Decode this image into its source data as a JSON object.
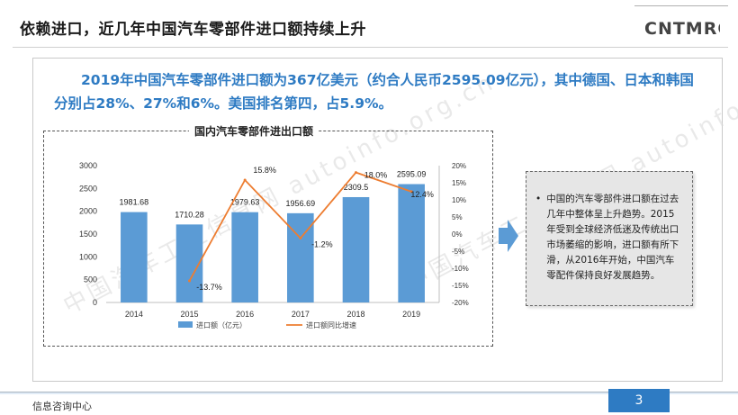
{
  "header": {
    "title": "依赖进口，近几年中国汽车零部件进口额持续上升",
    "logo_text": "CNTMRC"
  },
  "summary": "2019年中国汽车零部件进口额为367亿美元（约合人民币2595.09亿元），其中德国、日本和韩国分别占28%、27%和6%。美国排名第四，占5.9%。",
  "note": {
    "bullet": "•",
    "text": "中国的汽车零部件进口额在过去几年中整体呈上升趋势。2015年受到全球经济低迷及传统出口市场萎缩的影响，进口额有所下滑，从2016年开始，中国汽车零配件保持良好发展趋势。"
  },
  "footer": {
    "label": "信息咨询中心",
    "page_number": "3"
  },
  "watermark": {
    "text": "中国汽车工业信息网 autoinfo.org.cn"
  },
  "colors": {
    "accent": "#2e7bc3",
    "bar": "#5b9bd5",
    "line": "#ed7d31"
  },
  "chart_data": {
    "type": "bar",
    "title": "国内汽车零部件进出口额",
    "categories": [
      "2014",
      "2015",
      "2016",
      "2017",
      "2018",
      "2019"
    ],
    "series": [
      {
        "name": "进口额（亿元）",
        "kind": "bar",
        "axis": "left",
        "values": [
          1981.68,
          1710.28,
          1979.63,
          1956.69,
          2309.5,
          2595.09
        ],
        "labels": [
          "1981.68",
          "1710.28",
          "1979.63",
          "1956.69",
          "2309.5",
          "2595.09"
        ]
      },
      {
        "name": "进口额同比增速",
        "kind": "line",
        "axis": "right",
        "values": [
          null,
          -13.7,
          15.8,
          -1.2,
          18.0,
          12.4
        ],
        "labels": [
          "",
          "-13.7%",
          "15.8%",
          "-1.2%",
          "18.0%",
          "12.4%"
        ]
      }
    ],
    "ylim_left": [
      0,
      3000
    ],
    "yticks_left": [
      "0",
      "500",
      "1000",
      "1500",
      "2000",
      "2500",
      "3000"
    ],
    "ylim_right": [
      -20,
      20
    ],
    "yticks_right": [
      "-20%",
      "-15%",
      "-10%",
      "-5%",
      "0%",
      "5%",
      "10%",
      "15%",
      "20%"
    ],
    "legend_position": "bottom",
    "grid": false
  }
}
